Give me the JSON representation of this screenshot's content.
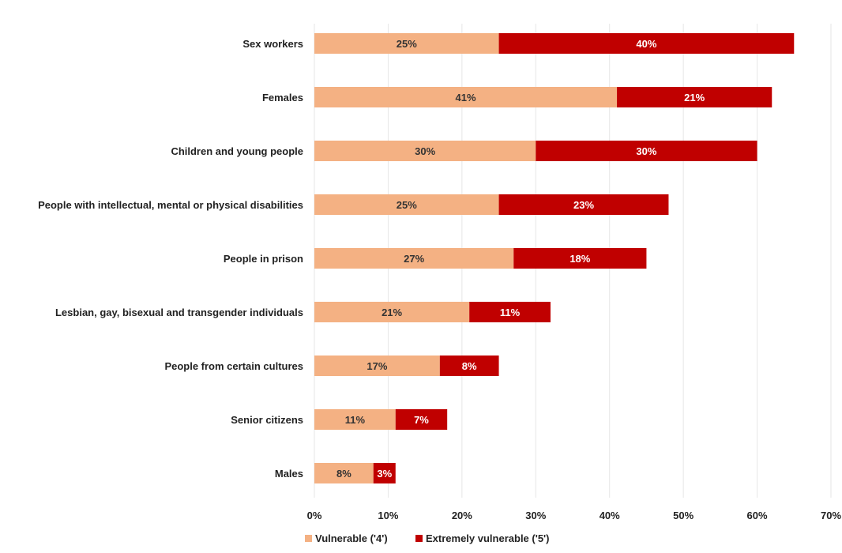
{
  "chart_data": {
    "type": "bar",
    "orientation": "horizontal",
    "stacked": true,
    "categories": [
      "Sex workers",
      "Females",
      "Children and young people",
      "People with intellectual, mental or physical disabilities",
      "People in prison",
      "Lesbian, gay, bisexual and transgender individuals",
      "People from certain cultures",
      "Senior citizens",
      "Males"
    ],
    "series": [
      {
        "name": "Vulnerable ('4')",
        "color": "#f4b183",
        "label_color": "#333333",
        "values": [
          25,
          41,
          30,
          25,
          27,
          21,
          17,
          11,
          8
        ],
        "labels": [
          "25%",
          "41%",
          "30%",
          "25%",
          "27%",
          "21%",
          "17%",
          "11%",
          "8%"
        ]
      },
      {
        "name": "Extremely vulnerable ('5')",
        "color": "#c00000",
        "label_color": "#ffffff",
        "values": [
          40,
          21,
          30,
          23,
          18,
          11,
          8,
          7,
          3
        ],
        "labels": [
          "40%",
          "21%",
          "30%",
          "23%",
          "18%",
          "11%",
          "8%",
          "7%",
          "3%"
        ]
      }
    ],
    "x_ticks": [
      "0%",
      "10%",
      "20%",
      "30%",
      "40%",
      "50%",
      "60%",
      "70%"
    ],
    "xlim": [
      0,
      70
    ],
    "grid": true,
    "legend_position": "bottom"
  }
}
